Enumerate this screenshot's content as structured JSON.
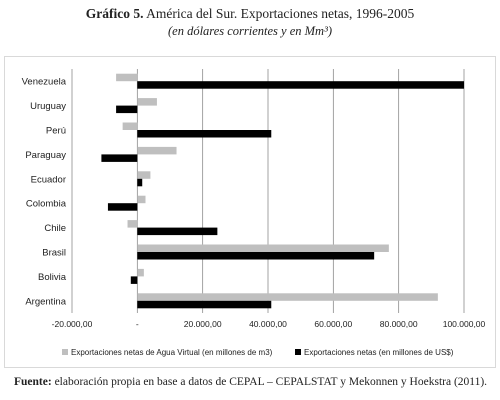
{
  "header": {
    "figure_label": "Gráfico 5.",
    "title": "América del Sur. Exportaciones netas, 1996-2005",
    "subtitle": "(en dólares corrientes y en Mm³)"
  },
  "footer": {
    "source_label": "Fuente:",
    "source_text": "elaboración propia en base a datos de CEPAL – CEPALSTAT y Mekonnen y Hoekstra (2011)."
  },
  "colors": {
    "water_series": "#bfbfbf",
    "usd_series": "#000000",
    "gridline": "#8c8c8c"
  },
  "chart_data": {
    "type": "bar",
    "orientation": "horizontal",
    "categories": [
      "Venezuela",
      "Uruguay",
      "Perú",
      "Paraguay",
      "Ecuador",
      "Colombia",
      "Chile",
      "Brasil",
      "Bolivia",
      "Argentina"
    ],
    "series": [
      {
        "name": "Exportaciones netas de Agua Virtual (en millones de m3)",
        "color": "#bfbfbf",
        "values": [
          -6500,
          6000,
          -4500,
          12000,
          4000,
          2500,
          -3000,
          77000,
          2000,
          92000
        ]
      },
      {
        "name": "Exportaciones netas (en millones de US$)",
        "color": "#000000",
        "values": [
          100000,
          -6500,
          41000,
          -11000,
          1500,
          -9000,
          24500,
          72500,
          -2000,
          41000
        ]
      }
    ],
    "xlim": [
      -20000,
      100000
    ],
    "xticks": [
      -20000,
      0,
      20000,
      40000,
      60000,
      80000,
      100000
    ],
    "xtick_labels": [
      "-20.000,00",
      "-",
      "20.000,00",
      "40.000,00",
      "60.000,00",
      "80.000,00",
      "100.000,00"
    ],
    "grid": true,
    "legend_position": "bottom"
  }
}
